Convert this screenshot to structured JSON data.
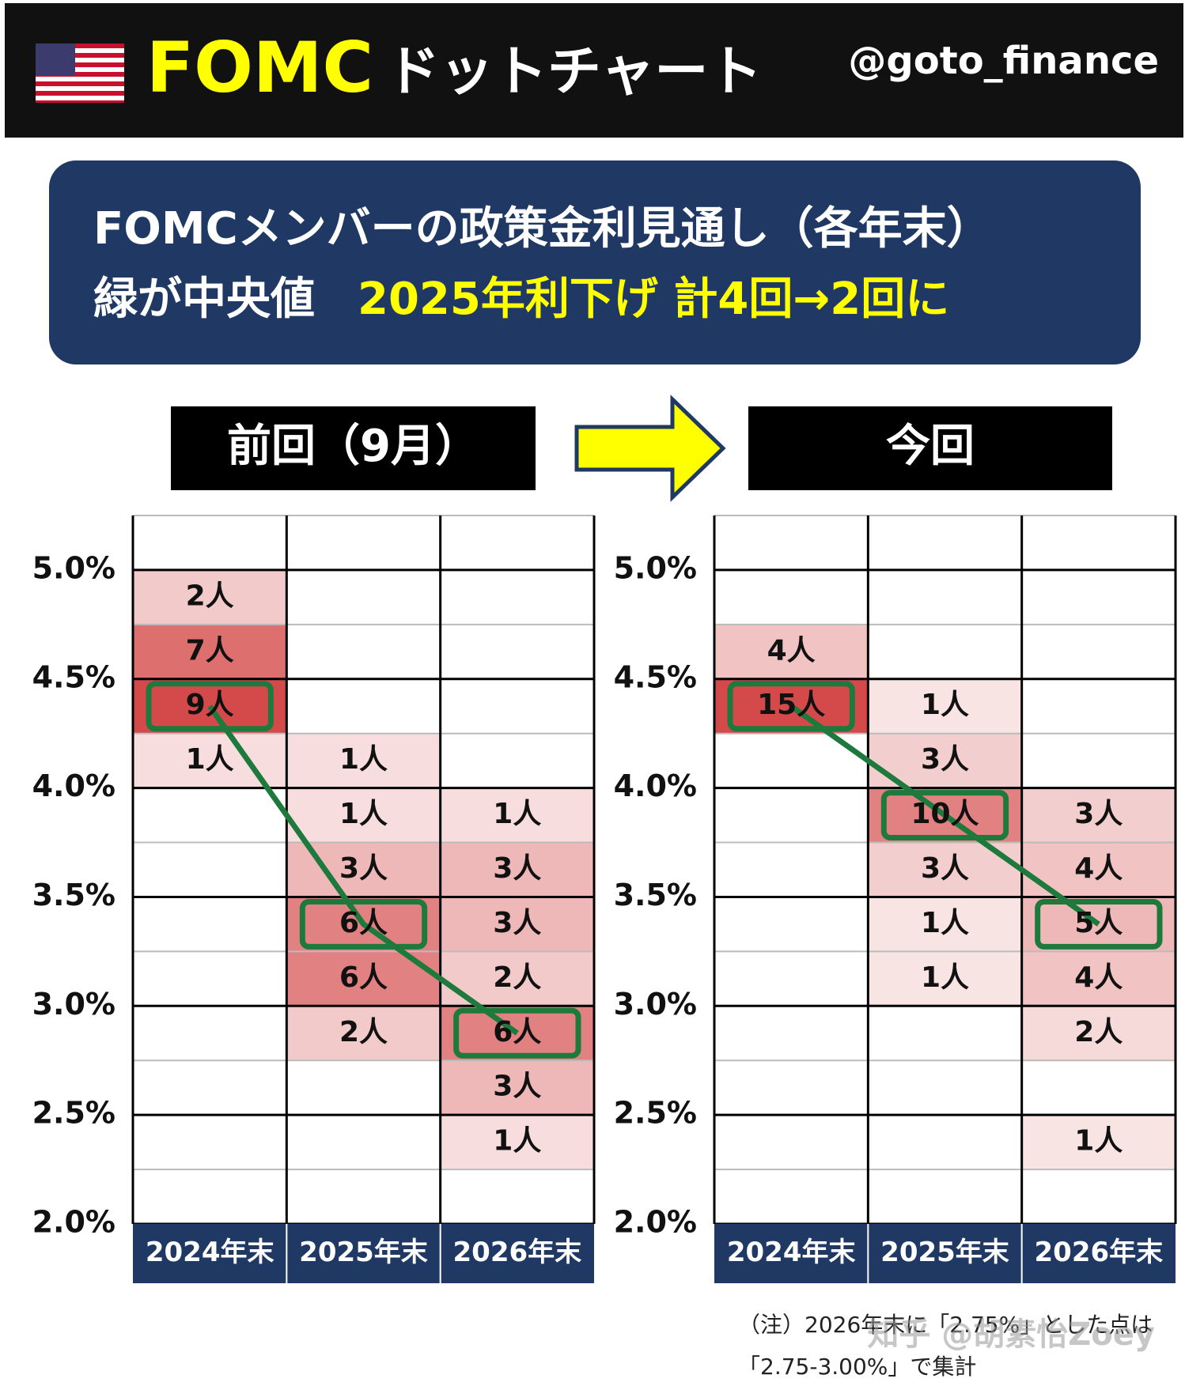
{
  "header": {
    "title": "FOMC",
    "subtitle": "ドットチャート",
    "handle": "@goto_finance"
  },
  "banner": {
    "line1": "FOMCメンバーの政策金利見通し（各年末）",
    "line2_white": "緑が中央値",
    "line2_yellow": "2025年利下げ 計4回→2回に"
  },
  "chart_data": [
    {
      "type": "heatmap",
      "title": "前回（9月）",
      "categories": [
        "2024年末",
        "2025年末",
        "2026年末"
      ],
      "color": "#d03a3a",
      "median_color": "#1e7a3c",
      "ylim": [
        2.0,
        5.25
      ],
      "yticks": [
        {
          "value": 2.0,
          "label": "2.0%"
        },
        {
          "value": 2.5,
          "label": "2.5%"
        },
        {
          "value": 3.0,
          "label": "3.0%"
        },
        {
          "value": 3.5,
          "label": "3.5%"
        },
        {
          "value": 4.0,
          "label": "4.0%"
        },
        {
          "value": 4.5,
          "label": "4.5%"
        },
        {
          "value": 5.0,
          "label": "5.0%"
        }
      ],
      "columns": [
        {
          "y": [
            4.875,
            4.625,
            4.375,
            4.125
          ],
          "values": [
            2,
            7,
            9,
            1
          ],
          "value_labels": [
            "2人",
            "7人",
            "9人",
            "1人"
          ],
          "median": 4.375
        },
        {
          "y": [
            4.125,
            3.875,
            3.625,
            3.375,
            3.125,
            2.875
          ],
          "values": [
            1,
            1,
            3,
            6,
            6,
            2
          ],
          "value_labels": [
            "1人",
            "1人",
            "3人",
            "6人",
            "6人",
            "2人"
          ],
          "median": 3.375
        },
        {
          "y": [
            3.875,
            3.625,
            3.375,
            3.125,
            2.875,
            2.625,
            2.375
          ],
          "values": [
            1,
            3,
            3,
            2,
            6,
            3,
            1
          ],
          "value_labels": [
            "1人",
            "3人",
            "3人",
            "2人",
            "6人",
            "3人",
            "1人"
          ],
          "median": 2.875
        }
      ]
    },
    {
      "type": "heatmap",
      "title": "今回",
      "categories": [
        "2024年末",
        "2025年末",
        "2026年末"
      ],
      "color": "#d03a3a",
      "median_color": "#1e7a3c",
      "ylim": [
        2.0,
        5.25
      ],
      "yticks": [
        {
          "value": 2.0,
          "label": "2.0%"
        },
        {
          "value": 2.5,
          "label": "2.5%"
        },
        {
          "value": 3.0,
          "label": "3.0%"
        },
        {
          "value": 3.5,
          "label": "3.5%"
        },
        {
          "value": 4.0,
          "label": "4.0%"
        },
        {
          "value": 4.5,
          "label": "4.5%"
        },
        {
          "value": 5.0,
          "label": "5.0%"
        }
      ],
      "columns": [
        {
          "y": [
            4.625,
            4.375
          ],
          "values": [
            4,
            15
          ],
          "value_labels": [
            "4人",
            "15人"
          ],
          "median": 4.375
        },
        {
          "y": [
            4.375,
            4.125,
            3.875,
            3.625,
            3.375,
            3.125
          ],
          "values": [
            1,
            3,
            10,
            3,
            1,
            1
          ],
          "value_labels": [
            "1人",
            "3人",
            "10人",
            "3人",
            "1人",
            "1人"
          ],
          "median": 3.875
        },
        {
          "y": [
            3.875,
            3.625,
            3.375,
            3.125,
            2.875,
            2.375
          ],
          "values": [
            3,
            4,
            5,
            4,
            2,
            1
          ],
          "value_labels": [
            "3人",
            "4人",
            "5人",
            "4人",
            "2人",
            "1人"
          ],
          "median": 3.375
        }
      ]
    }
  ],
  "note": {
    "line1": "（注）2026年末に「2.75%」とした点は",
    "line2": "「2.75-3.00%」で集計",
    "watermark": "知乎 @胡素怡Zoey"
  }
}
